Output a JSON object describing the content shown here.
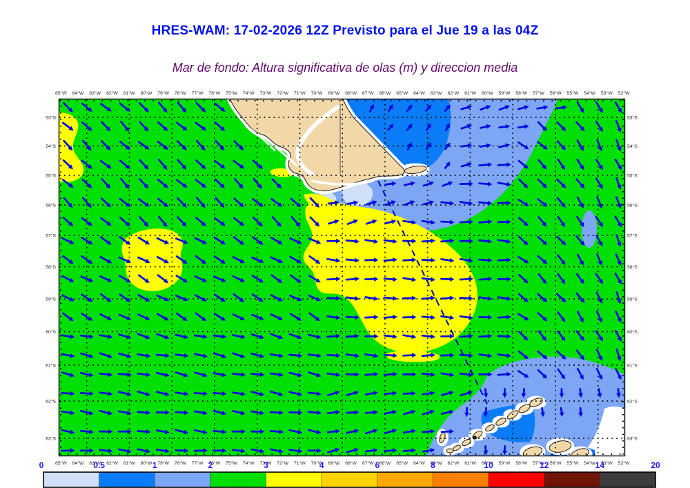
{
  "title": {
    "text": "HRES-WAM: 17-02-2026 12Z Previsto para el Jue 19 a las 04Z",
    "color": "#0012ee"
  },
  "subtitle": {
    "text": "Mar de fondo: Altura significativa de olas (m) y direccion media",
    "color": "#620a6e"
  },
  "map": {
    "lon_labels": [
      "85°W",
      "84°W",
      "83°W",
      "82°W",
      "81°W",
      "80°W",
      "79°W",
      "78°W",
      "77°W",
      "76°W",
      "75°W",
      "74°W",
      "73°W",
      "72°W",
      "71°W",
      "70°W",
      "69°W",
      "68°W",
      "67°W",
      "66°W",
      "65°W",
      "64°W",
      "63°W",
      "62°W",
      "61°W",
      "60°W",
      "59°W",
      "58°W",
      "57°W",
      "56°W",
      "55°W",
      "54°W",
      "53°W",
      "52°W"
    ],
    "lat_labels": [
      "53°S",
      "54°S",
      "55°S",
      "56°S",
      "57°S",
      "58°S",
      "59°S",
      "60°S",
      "61°S",
      "62°S",
      "63°S"
    ],
    "axis_label_color": "#222222",
    "frame_color": "#000000",
    "grid_color": "#000000",
    "arrow_color": "#0009dd",
    "track_color": "#0000bb",
    "land_color": "#f2d8a8",
    "coast_color": "#1a1a1a",
    "sea_colors": {
      "wave_0_05": "#cfe0f8",
      "wave_05_1": "#0a7cf8",
      "wave_1_2": "#7da6f5",
      "wave_2_3": "#00e000",
      "wave_3_4": "#ffff00"
    }
  },
  "colorbar": {
    "unit_values": [
      "0",
      "0.5",
      "1",
      "2",
      "3",
      "4",
      "6",
      "8",
      "10",
      "12",
      "14",
      "20"
    ],
    "segment_colors": [
      "#cfe0f8",
      "#0a7cf8",
      "#7da6f5",
      "#00e000",
      "#ffff00",
      "#ffd300",
      "#ffa800",
      "#ff7f00",
      "#ff0000",
      "#701505",
      "#3c3c3c"
    ],
    "label_color": "#1a16ff",
    "border_color": "#000000"
  },
  "chart_data": {
    "type": "heatmap",
    "title": "HRES-WAM: 17-02-2026 12Z Previsto para el Jue 19 a las 04Z",
    "subtitle": "Mar de fondo: Altura significativa de olas (m) y direccion media",
    "units": "m",
    "x_range_lon_west": [
      85,
      52
    ],
    "y_range_lat_south": [
      53,
      63
    ],
    "scale_values_m": [
      0,
      0.5,
      1,
      2,
      3,
      4,
      6,
      8,
      10,
      12,
      14,
      20
    ],
    "dominant_field_value_m": "2-3 m (green) over most of the domain; 3-4 m (yellow) patches west and south of Tierra del Fuego; 1-2 m and 0.5-1 m (blues) NE Atlantic side and SE near the South Shetland Islands",
    "vector_overlay": "mean swell direction arrows, generally toward the east/southeast",
    "legend_position": "bottom"
  }
}
